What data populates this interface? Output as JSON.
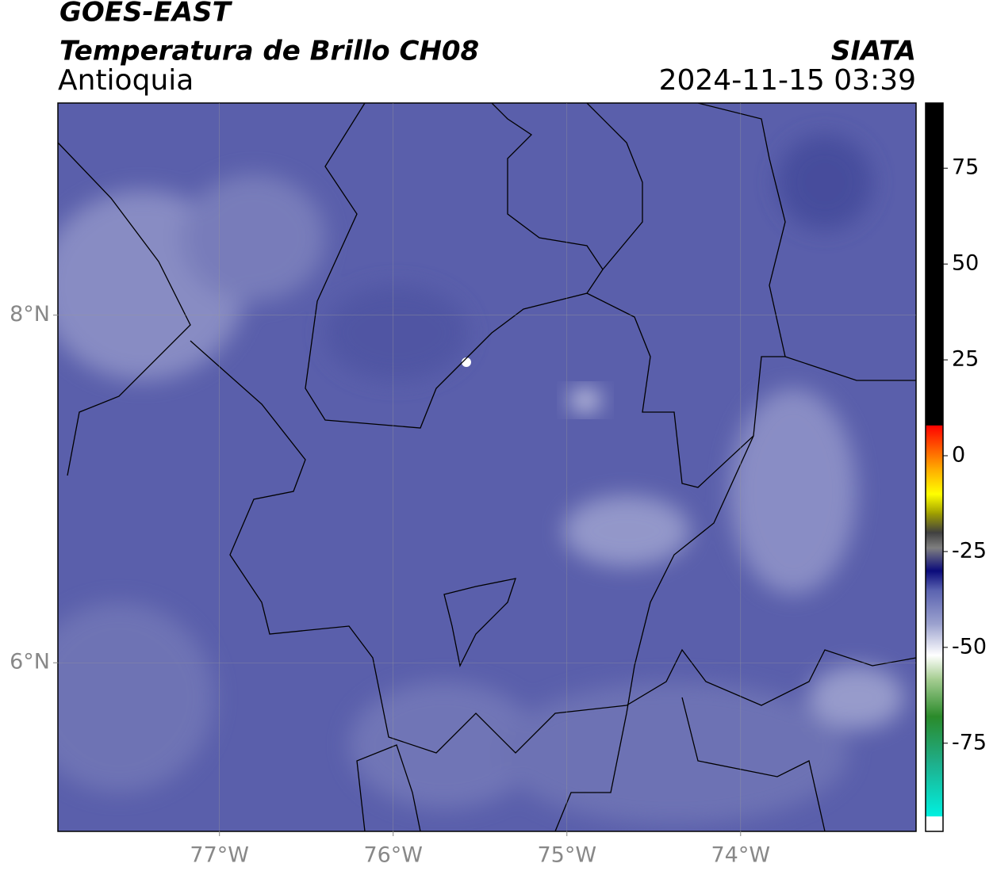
{
  "header": {
    "title": "GOES-EAST",
    "subtitle": "Temperatura de Brillo CH08",
    "region": "Antioquia",
    "source": "SIATA",
    "timestamp": "2024-11-15 03:39"
  },
  "map": {
    "xlim": [
      -77.93,
      -72.99
    ],
    "ylim": [
      5.03,
      9.22
    ],
    "xticks": [
      {
        "value": -77,
        "label": "77°W"
      },
      {
        "value": -76,
        "label": "76°W"
      },
      {
        "value": -75,
        "label": "75°W"
      },
      {
        "value": -74,
        "label": "74°W"
      }
    ],
    "yticks": [
      {
        "value": 6,
        "label": "6°N"
      },
      {
        "value": 8,
        "label": "8°N"
      }
    ],
    "grid": true
  },
  "colorbar": {
    "clim": [
      -98,
      92
    ],
    "ticks": [
      75,
      50,
      25,
      0,
      -25,
      -50,
      -75
    ],
    "stops": [
      {
        "value": -98,
        "color": "#ffffff"
      },
      {
        "value": -94,
        "color": "#ffffff"
      },
      {
        "value": -94,
        "color": "#00f0e0"
      },
      {
        "value": -80,
        "color": "#1fae8a"
      },
      {
        "value": -68,
        "color": "#2a8a2a"
      },
      {
        "value": -58,
        "color": "#a9cf95"
      },
      {
        "value": -52,
        "color": "#ffffff"
      },
      {
        "value": -44,
        "color": "#9da3cf"
      },
      {
        "value": -35,
        "color": "#5a62b0"
      },
      {
        "value": -30,
        "color": "#0a0a7a"
      },
      {
        "value": -24,
        "color": "#808080"
      },
      {
        "value": -20,
        "color": "#404040"
      },
      {
        "value": -15,
        "color": "#a0a000"
      },
      {
        "value": -10,
        "color": "#ffff00"
      },
      {
        "value": -3,
        "color": "#ffa500"
      },
      {
        "value": 8,
        "color": "#ff0000"
      },
      {
        "value": 8,
        "color": "#000000"
      },
      {
        "value": 92,
        "color": "#000000"
      }
    ]
  }
}
